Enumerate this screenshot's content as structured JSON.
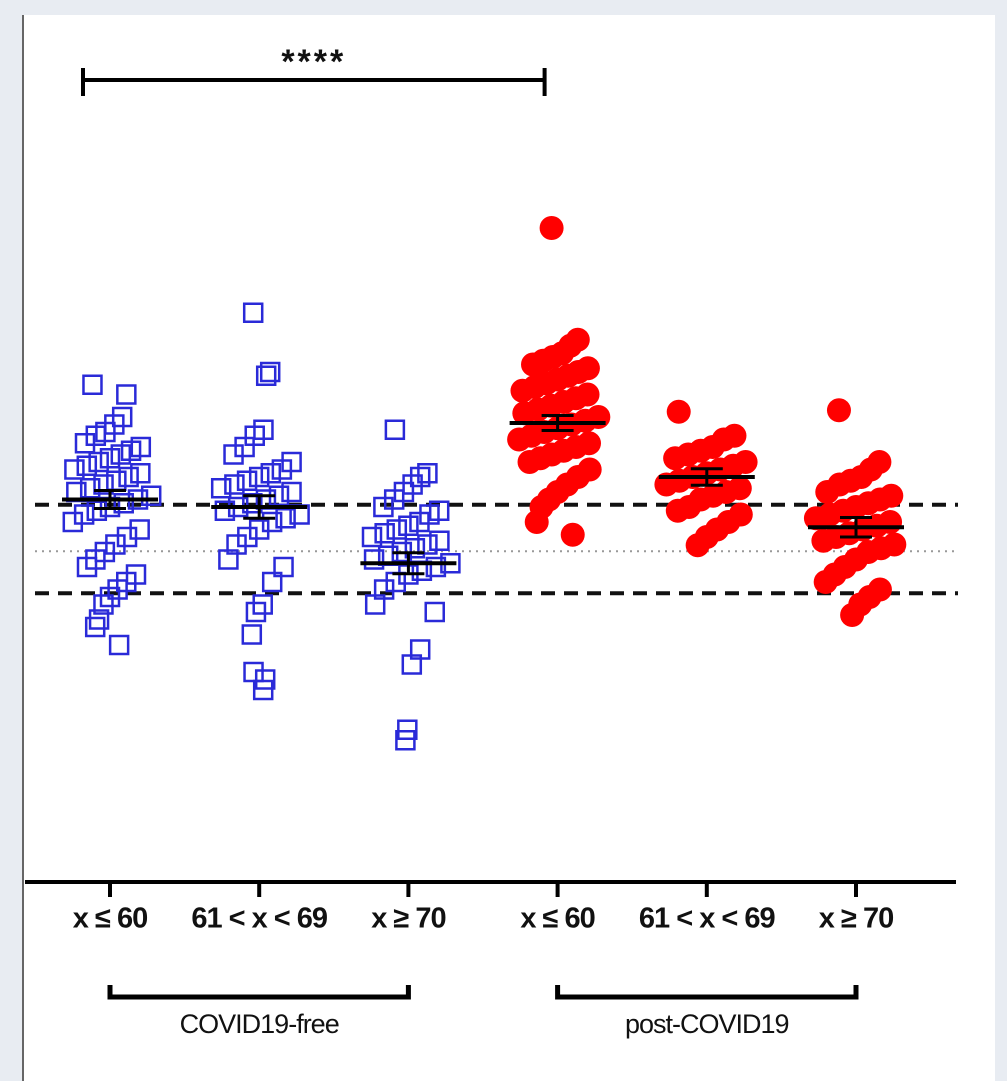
{
  "chart_data": {
    "type": "dot",
    "categories": [
      "x ≤ 60",
      "61 < x < 69",
      "x ≥ 70",
      "x ≤ 60",
      "61 < x < 69",
      "x ≥ 70"
    ],
    "ylim": [
      0,
      100
    ],
    "groups": [
      {
        "name": "COVID19-free",
        "color": "#2a2ad8",
        "marker": "square",
        "points": [
          [
            66.3,
            65,
            62,
            61,
            60,
            59.5,
            58.5,
            58,
            57.5,
            57,
            56.5,
            56,
            55.5,
            55,
            54.5,
            54,
            53.5,
            53,
            52.5,
            52,
            51.5,
            51,
            50.5,
            50,
            49.5,
            49,
            48,
            47,
            46,
            45,
            44,
            43,
            42,
            41,
            40,
            39,
            38,
            37,
            35,
            34,
            31.6
          ],
          [
            75.9,
            68,
            67.5,
            60.3,
            59.5,
            58,
            57,
            56,
            55,
            54.5,
            54,
            53.5,
            53,
            52.5,
            52,
            51.5,
            51,
            50.5,
            50,
            49.5,
            49,
            48.5,
            48,
            47,
            46,
            45,
            43,
            42,
            40,
            37,
            36,
            33,
            28,
            27,
            25.6
          ],
          [
            60.3,
            54.5,
            54,
            53,
            52,
            51,
            50,
            49.5,
            49,
            48,
            47.5,
            47,
            46.5,
            46,
            45.5,
            45,
            44.5,
            44,
            43.5,
            43,
            42.5,
            42,
            41.5,
            41,
            40,
            39,
            37,
            36,
            31,
            29,
            20.3,
            18.9
          ]
        ],
        "means": [
          51,
          50,
          42.5
        ],
        "sem": [
          1.2,
          1.5,
          1.4
        ]
      },
      {
        "name": "post-COVID19",
        "color": "#ff0000",
        "marker": "circle",
        "points": [
          [
            87.2,
            72.3,
            71.5,
            70.5,
            70,
            69.5,
            69,
            68.5,
            68,
            67.5,
            67,
            66.5,
            66,
            65.5,
            65,
            64.5,
            64,
            63.5,
            63,
            62.5,
            62,
            61.5,
            61,
            60.5,
            60,
            59.5,
            59,
            58.5,
            58,
            57.5,
            57,
            56.5,
            56,
            55,
            54,
            53,
            52,
            51,
            50,
            48,
            46.3
          ],
          [
            62.7,
            59.5,
            59,
            58,
            57.5,
            57,
            56.5,
            56,
            55.5,
            55,
            54.5,
            54,
            53.5,
            53,
            52.5,
            52,
            51.5,
            51,
            50,
            49.5,
            49,
            48,
            47,
            46,
            44.9
          ],
          [
            62.9,
            56,
            55,
            54,
            53.5,
            53,
            52,
            51.5,
            51,
            50.5,
            50,
            49.5,
            49,
            48.5,
            48,
            47.5,
            47,
            46.5,
            46,
            45.5,
            45,
            44.5,
            44,
            43,
            42,
            41,
            40,
            39,
            38,
            37,
            35.6
          ]
        ],
        "means": [
          61.2,
          54,
          47.3
        ],
        "sem": [
          1.0,
          1.1,
          1.3
        ]
      }
    ],
    "reference_lines": [
      {
        "value": 50.3,
        "style": "dashed"
      },
      {
        "value": 44.1,
        "style": "dotted"
      },
      {
        "value": 38.5,
        "style": "dashed"
      }
    ],
    "significance": {
      "text": "****",
      "from": 0,
      "to": 3
    }
  }
}
